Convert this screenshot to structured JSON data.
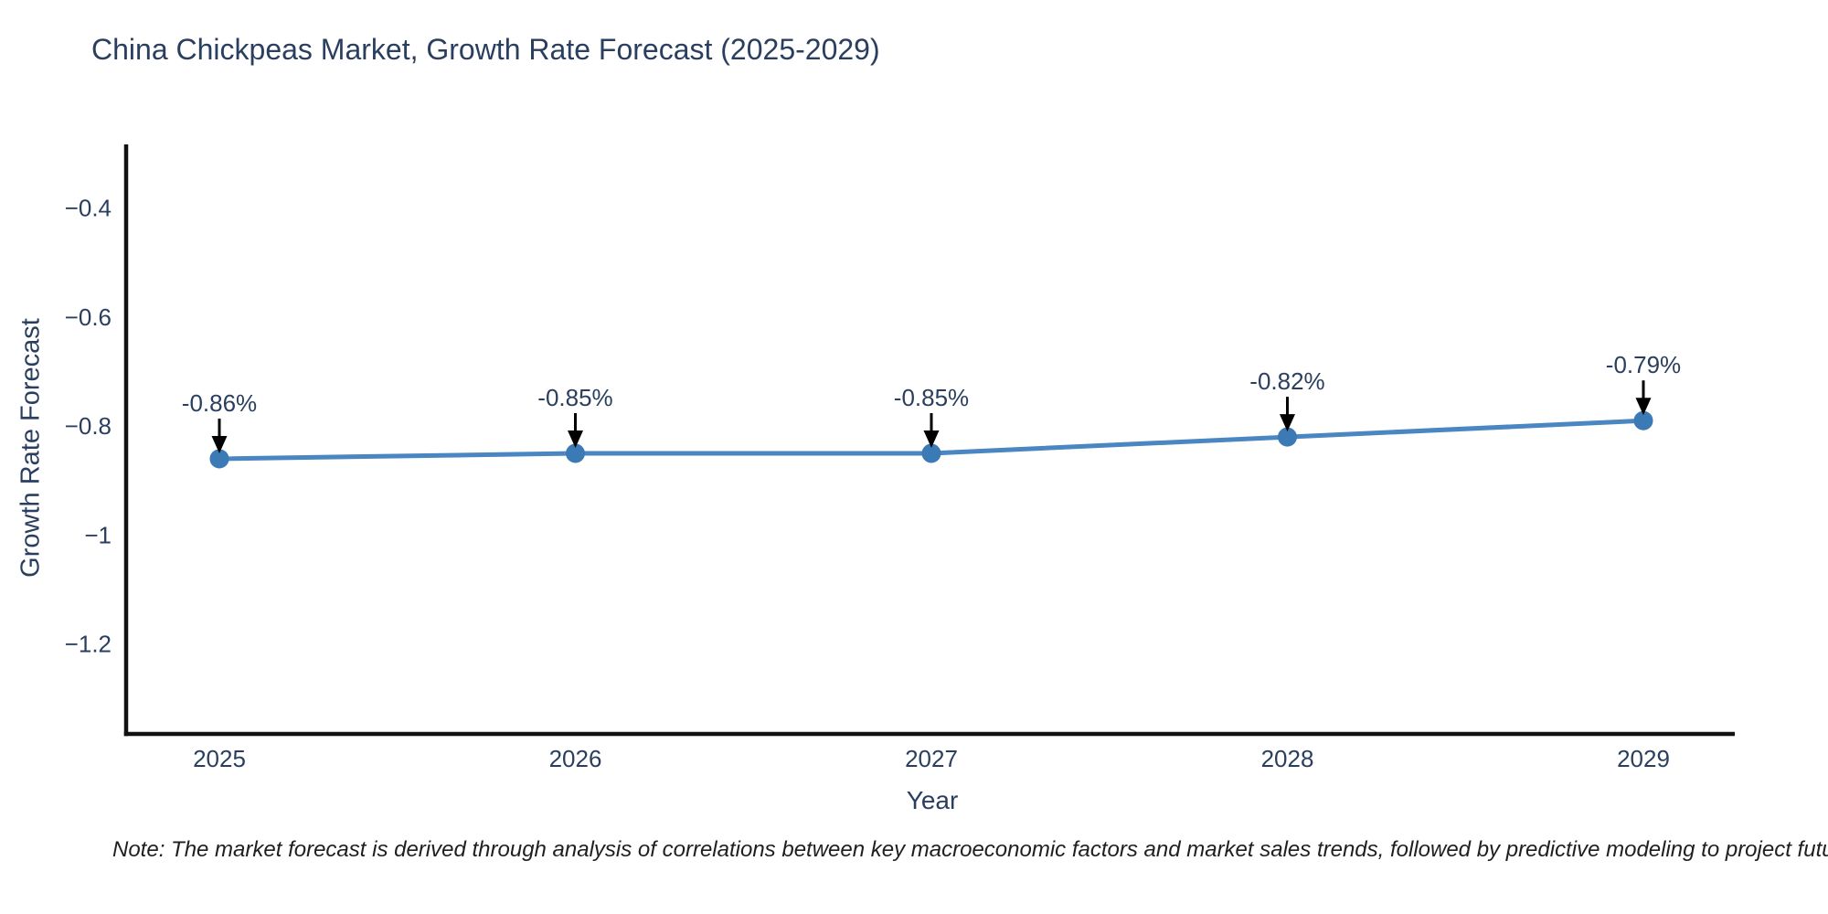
{
  "title": "China Chickpeas Market, Growth Rate Forecast (2025-2029)",
  "note": "Note: The market forecast is derived through analysis of correlations between key macroeconomic factors and market sales trends, followed by predictive modeling to project future sales",
  "chart_data": {
    "type": "line",
    "title": "China Chickpeas Market, Growth Rate Forecast (2025-2029)",
    "xlabel": "Year",
    "ylabel": "Growth Rate Forecast",
    "categories": [
      "2025",
      "2026",
      "2027",
      "2028",
      "2029"
    ],
    "values": [
      -0.86,
      -0.85,
      -0.85,
      -0.82,
      -0.79
    ],
    "point_labels": [
      "-0.86%",
      "-0.85%",
      "-0.85%",
      "-0.82%",
      "-0.79%"
    ],
    "series_name": "Growth Rate Forecast",
    "yticks": [
      -0.4,
      -0.6,
      -0.8,
      -1.0,
      -1.2
    ],
    "ytick_labels": [
      "−0.4",
      "−0.6",
      "−0.8",
      "−1",
      "−1.2"
    ],
    "ylim": [
      -1.365,
      -0.283
    ],
    "grid": false,
    "legend": false,
    "annotations": "value labels with downward arrows above each point",
    "colors": {
      "line": "#4a86c2",
      "marker": "#3c7ab6",
      "axis": "#111111",
      "text": "#2a3f5f",
      "annotation_text": "#2a3f5f",
      "annotation_arrow": "#000000"
    }
  }
}
